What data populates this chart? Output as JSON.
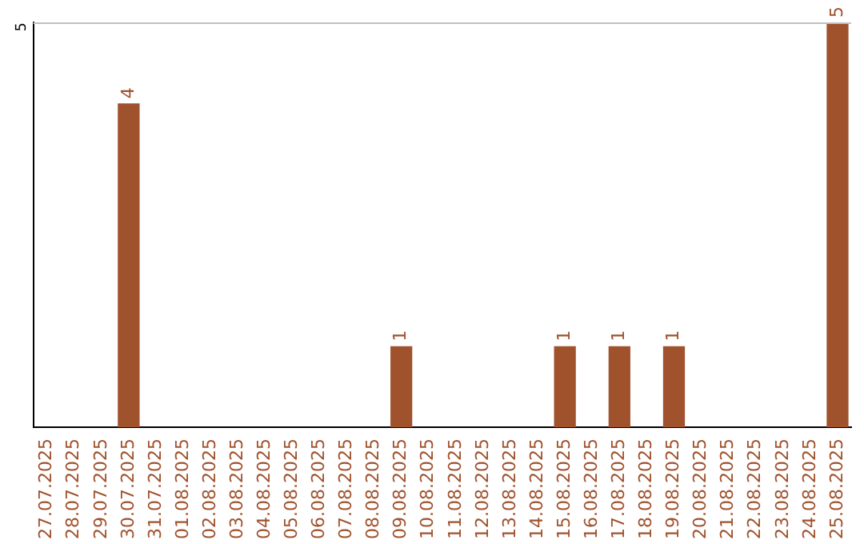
{
  "chart_data": {
    "type": "bar",
    "categories": [
      "27.07.2025",
      "28.07.2025",
      "29.07.2025",
      "30.07.2025",
      "31.07.2025",
      "01.08.2025",
      "02.08.2025",
      "03.08.2025",
      "04.08.2025",
      "05.08.2025",
      "06.08.2025",
      "07.08.2025",
      "08.08.2025",
      "09.08.2025",
      "10.08.2025",
      "11.08.2025",
      "12.08.2025",
      "13.08.2025",
      "14.08.2025",
      "15.08.2025",
      "16.08.2025",
      "17.08.2025",
      "18.08.2025",
      "19.08.2025",
      "20.08.2025",
      "21.08.2025",
      "22.08.2025",
      "23.08.2025",
      "24.08.2025",
      "25.08.2025"
    ],
    "values": [
      0,
      0,
      0,
      4,
      0,
      0,
      0,
      0,
      0,
      0,
      0,
      0,
      0,
      1,
      0,
      0,
      0,
      0,
      0,
      1,
      0,
      1,
      0,
      1,
      0,
      0,
      0,
      0,
      0,
      5
    ],
    "value_labels": [
      null,
      null,
      null,
      "4",
      null,
      null,
      null,
      null,
      null,
      null,
      null,
      null,
      null,
      "1",
      null,
      null,
      null,
      null,
      null,
      "1",
      null,
      "1",
      null,
      "1",
      null,
      null,
      null,
      null,
      null,
      "5"
    ],
    "color": "#a0522d",
    "ylim": [
      0,
      5
    ],
    "yticks": [
      5
    ],
    "legend": false
  }
}
